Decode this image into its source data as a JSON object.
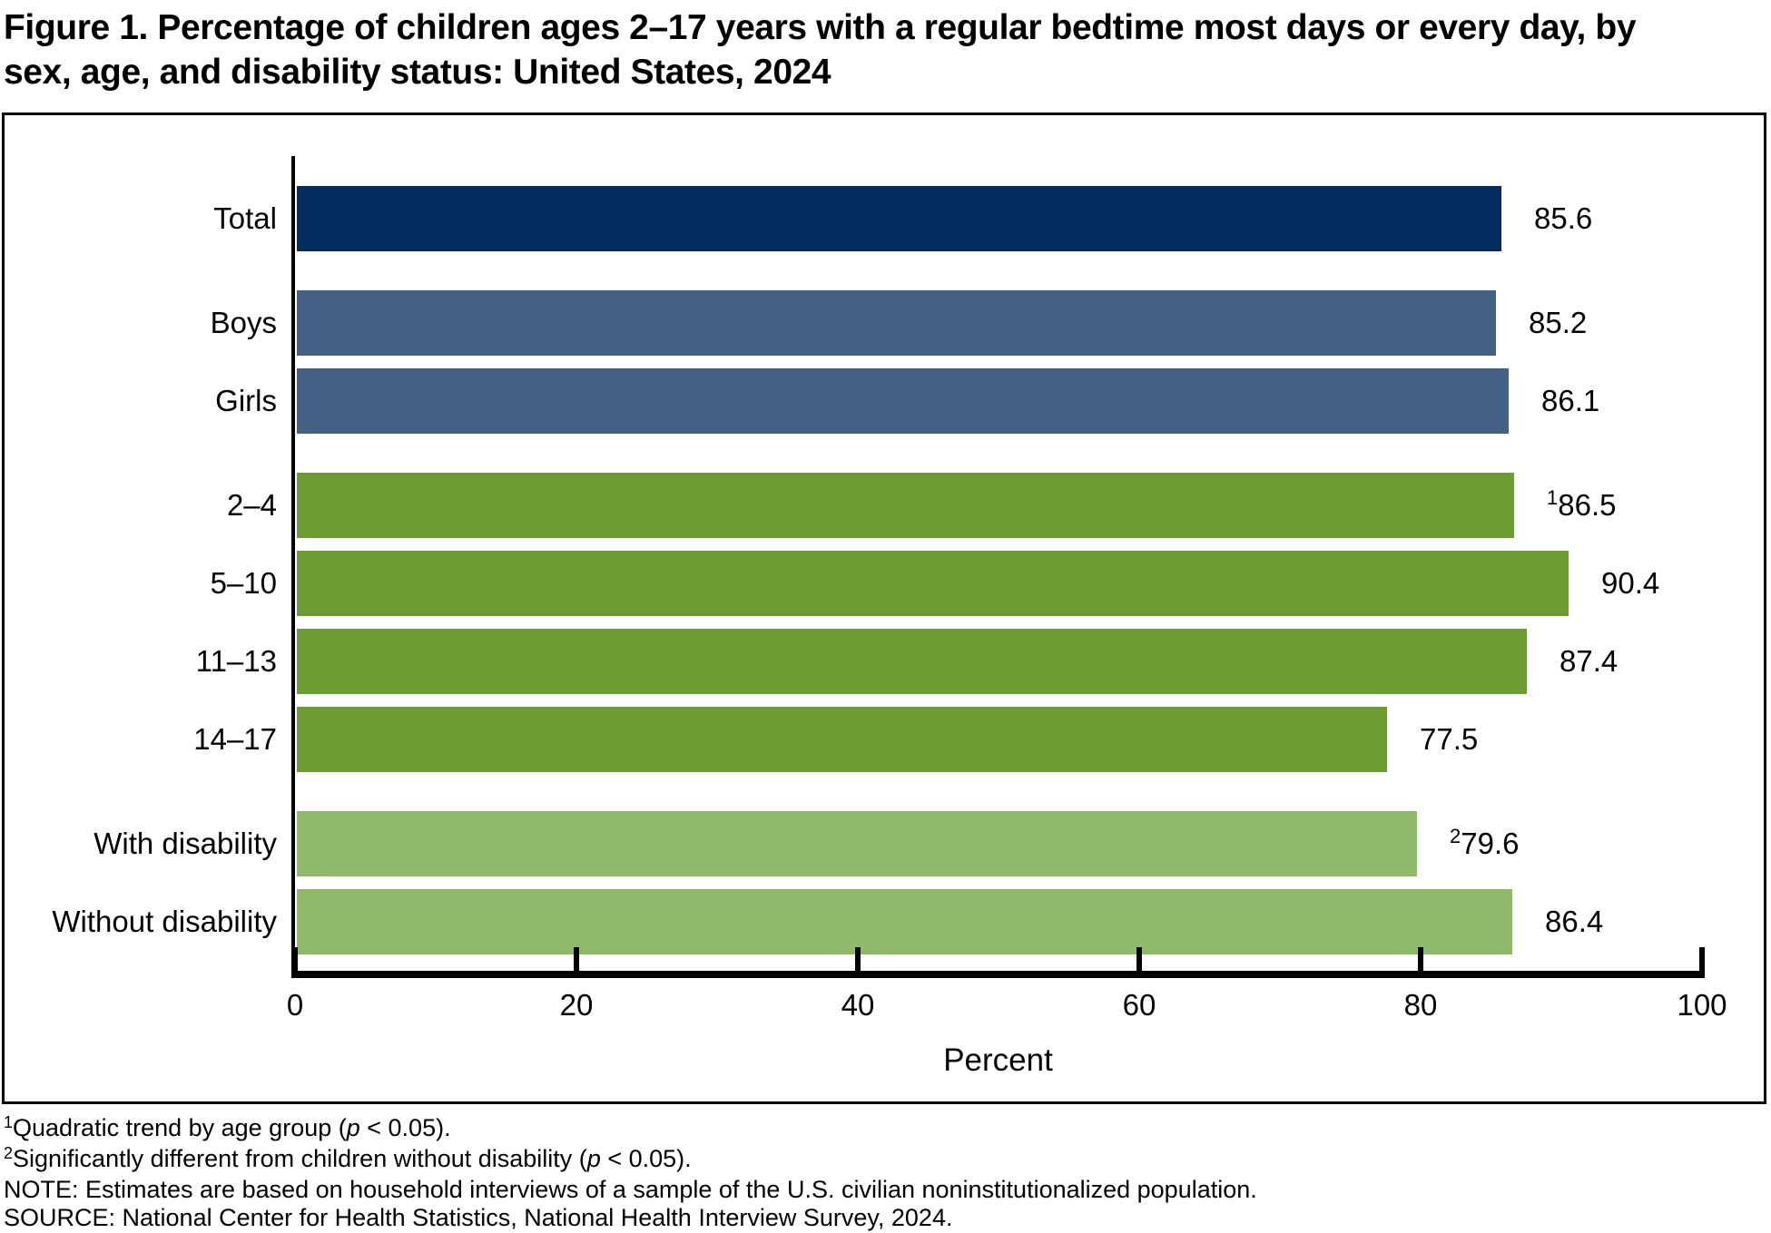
{
  "figure": {
    "title_line1": "Figure 1. Percentage of children ages 2–17 years with a regular bedtime most days or every day, by",
    "title_line2": "sex, age, and disability status: United States, 2024"
  },
  "chart_data": {
    "type": "bar",
    "orientation": "horizontal",
    "title": "Figure 1. Percentage of children ages 2–17 years with a regular bedtime most days or every day, by sex, age, and disability status: United States, 2024",
    "categories": [
      "Total",
      "Boys",
      "Girls",
      "2–4",
      "5–10",
      "11–13",
      "14–17",
      "With disability",
      "Without disability"
    ],
    "values": [
      85.6,
      85.2,
      86.1,
      86.5,
      90.4,
      87.4,
      77.5,
      79.6,
      86.4
    ],
    "value_labels": [
      "85.6",
      "85.2",
      "86.1",
      "86.5",
      "90.4",
      "87.4",
      "77.5",
      "79.6",
      "86.4"
    ],
    "value_superscripts": [
      "",
      "",
      "",
      "1",
      "",
      "",
      "",
      "2",
      ""
    ],
    "bar_colors": [
      "#022c5e",
      "#426185",
      "#426185",
      "#6d9b34",
      "#6d9b34",
      "#6d9b34",
      "#6d9b34",
      "#90b96a",
      "#90b96a"
    ],
    "group_start_indices": [
      1,
      3,
      7
    ],
    "xlabel": "Percent",
    "x_ticks": [
      0,
      20,
      40,
      60,
      80,
      100
    ],
    "xlim": [
      0,
      100
    ],
    "grid": false,
    "legend": false,
    "axis_color": "#000000",
    "text_color": "#000000"
  },
  "footnotes": [
    [
      {
        "text": "1",
        "style": "sup"
      },
      {
        "text": "Quadratic trend by age group (",
        "style": "plain"
      },
      {
        "text": "p",
        "style": "italic"
      },
      {
        "text": " < 0.05).",
        "style": "plain"
      }
    ],
    [
      {
        "text": "2",
        "style": "sup"
      },
      {
        "text": "Significantly different from children without disability (",
        "style": "plain"
      },
      {
        "text": "p",
        "style": "italic"
      },
      {
        "text": " < 0.05).",
        "style": "plain"
      }
    ],
    [
      {
        "text": "NOTE: Estimates are based on household interviews of a sample of the U.S. civilian noninstitutionalized population.",
        "style": "plain"
      }
    ],
    [
      {
        "text": "SOURCE: National Center for Health Statistics, National Health Interview Survey, 2024.",
        "style": "plain"
      }
    ]
  ]
}
